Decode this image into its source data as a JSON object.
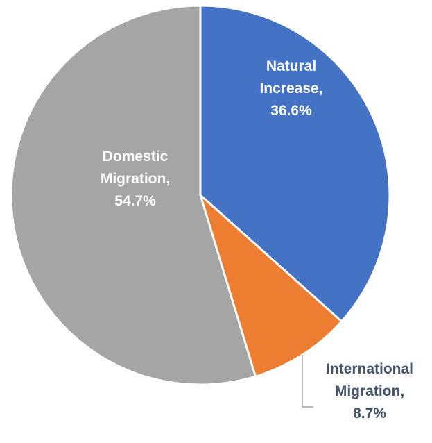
{
  "chart_data": {
    "type": "pie",
    "title": "",
    "slices": [
      {
        "category": "Natural Increase",
        "value": 36.6,
        "label_lines": [
          "Natural",
          "Increase,",
          "36.6%"
        ],
        "color": "#4472c4",
        "label_color": "#ffffff"
      },
      {
        "category": "International Migration",
        "value": 8.7,
        "label_lines": [
          "International",
          "Migration,",
          "8.7%"
        ],
        "color": "#ed7d31",
        "label_color": "#44546a"
      },
      {
        "category": "Domestic Migration",
        "value": 54.7,
        "label_lines": [
          "Domestic",
          "Migration,",
          "54.7%"
        ],
        "color": "#a5a5a5",
        "label_color": "#ffffff"
      }
    ],
    "start_angle": "12 o'clock",
    "direction": "clockwise",
    "legend": "none"
  }
}
